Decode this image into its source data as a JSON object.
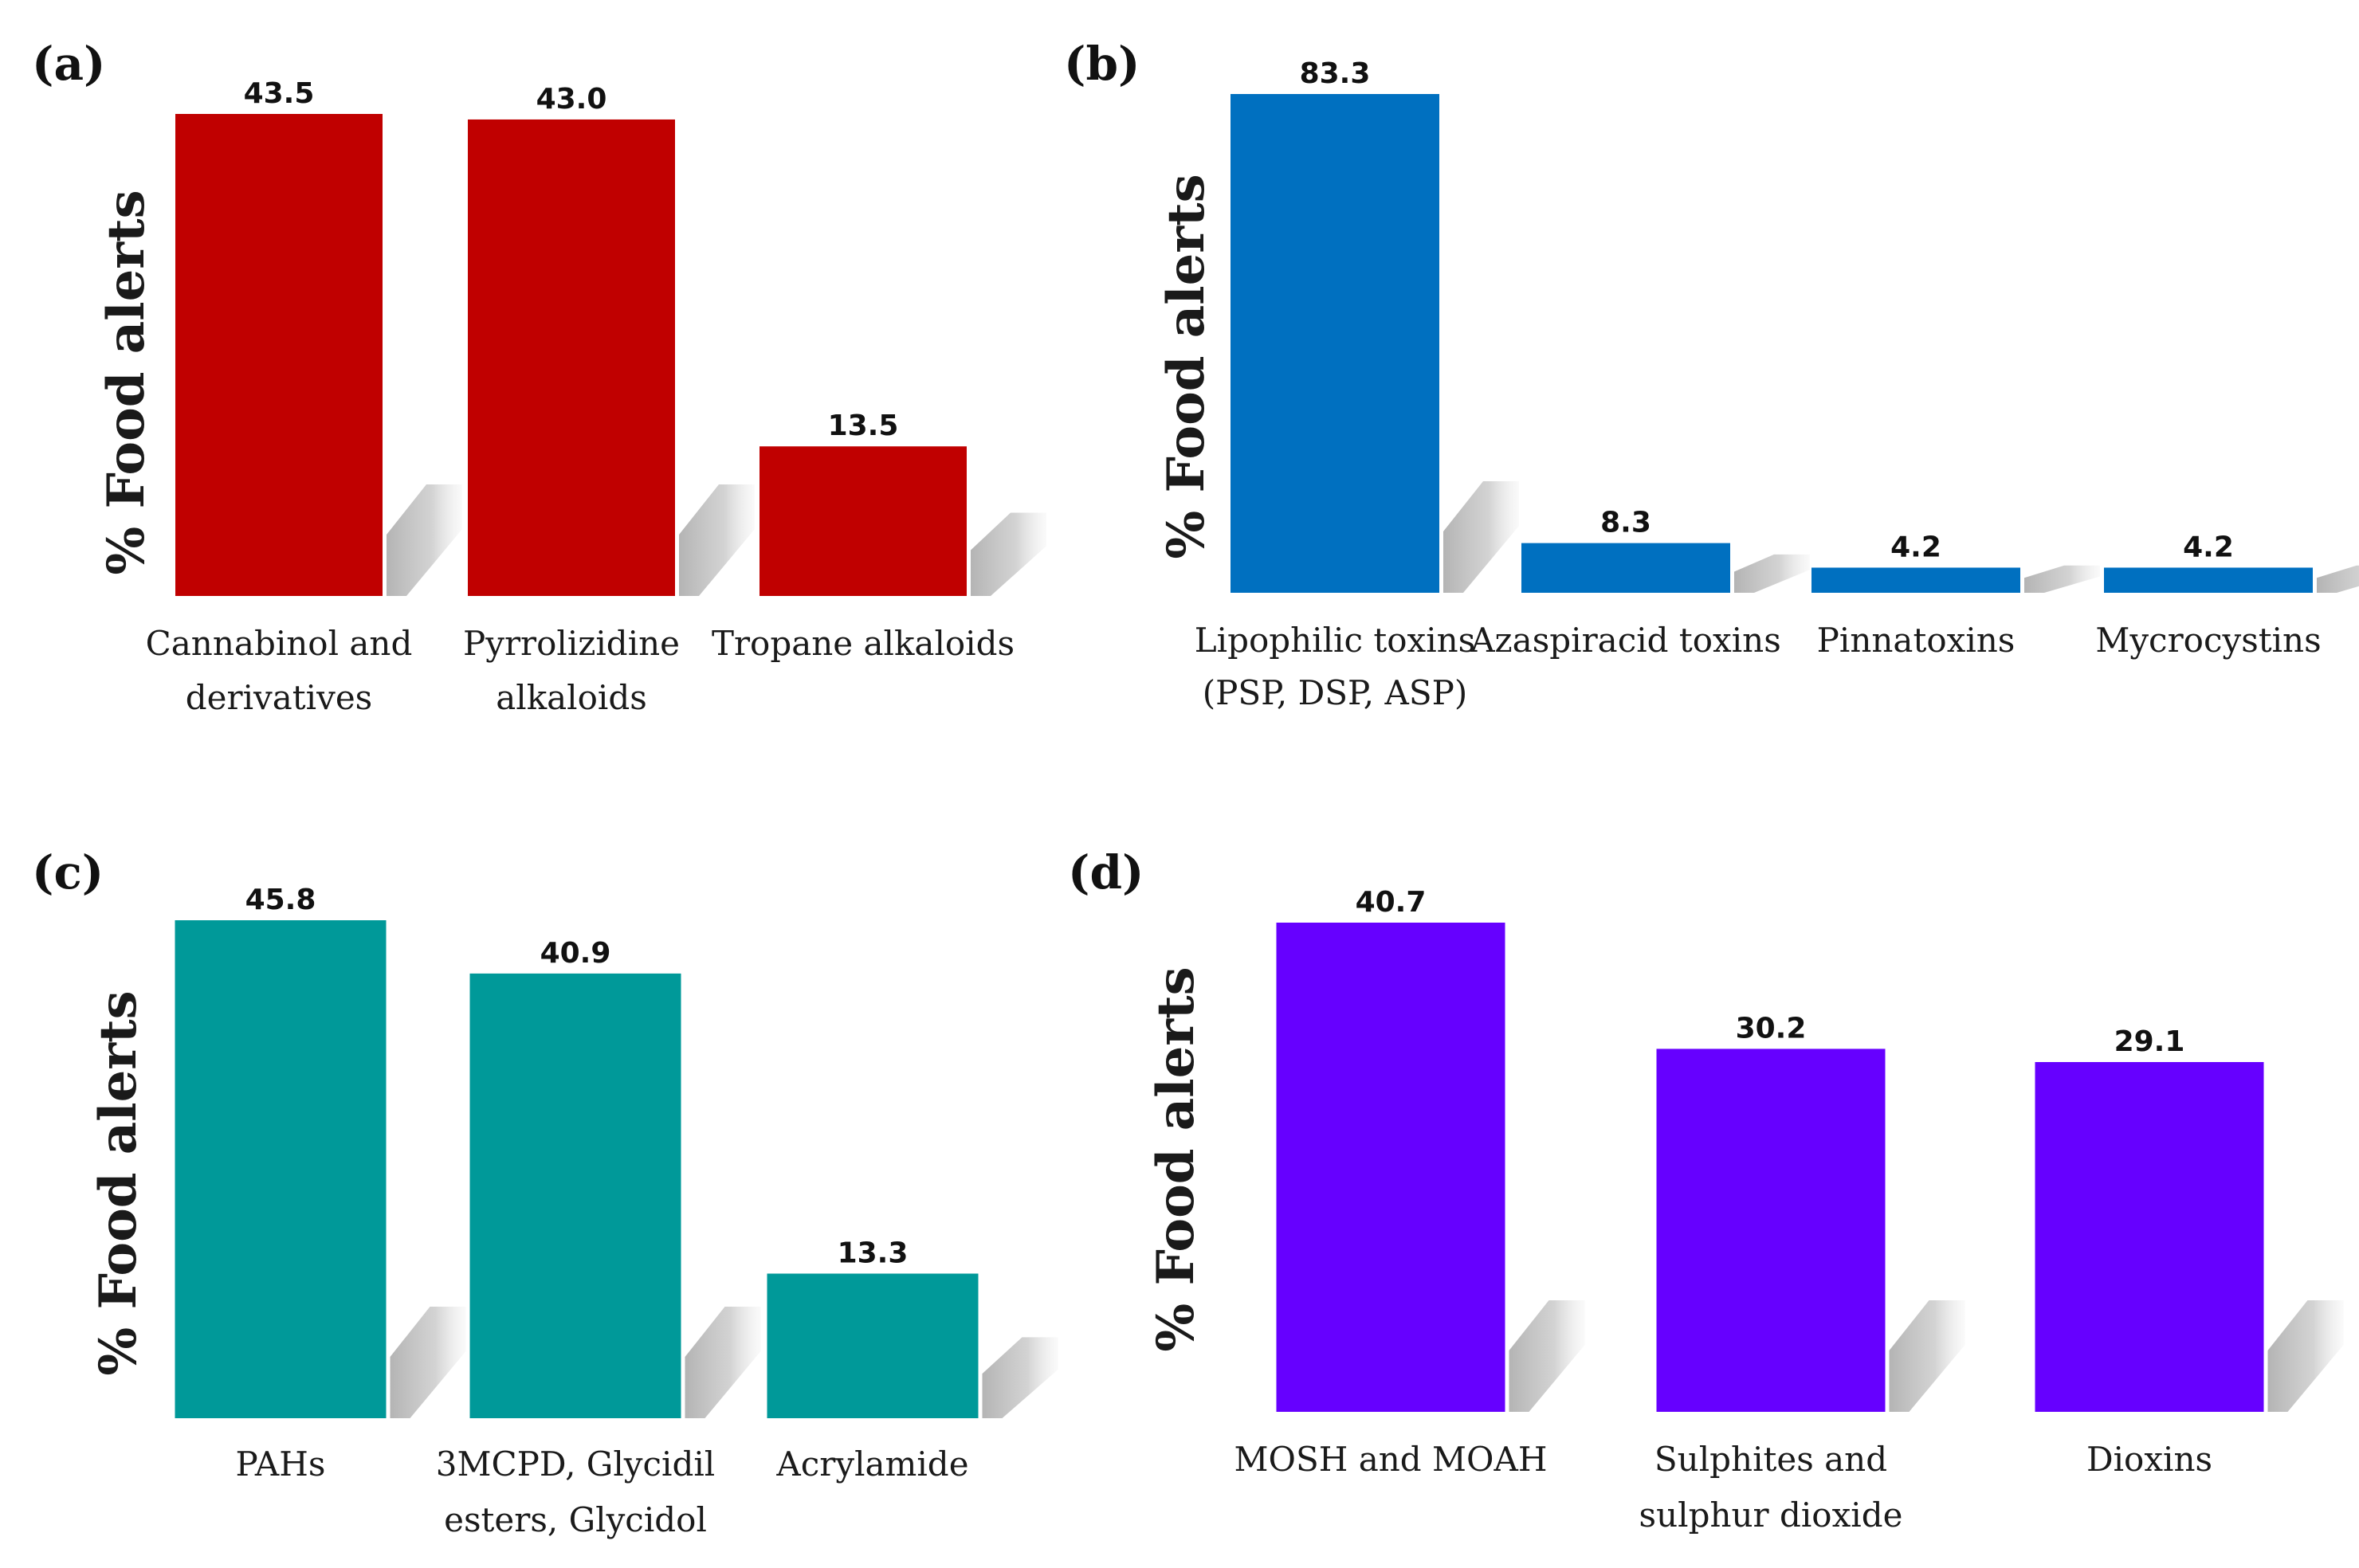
{
  "chart_data": [
    {
      "panel": "(a)",
      "type": "bar",
      "ylabel": "% Food alerts",
      "color": "#C00000",
      "categories": [
        "Cannabinol and derivatives",
        "Pyrrolizidine alkaloids",
        "Tropane alkaloids"
      ],
      "values": [
        43.5,
        43.0,
        13.5
      ],
      "value_labels": [
        "43.5",
        "43.0",
        "13.5"
      ],
      "ylim": [
        0,
        43.5
      ]
    },
    {
      "panel": "(b)",
      "type": "bar",
      "ylabel": "% Food alerts",
      "color": "#0070C0",
      "categories": [
        "Lipophilic toxins (PSP, DSP, ASP)",
        "Azaspiracid toxins",
        "Pinnatoxins",
        "Mycrocystins"
      ],
      "values": [
        83.3,
        8.3,
        4.2,
        4.2
      ],
      "value_labels": [
        "83.3",
        "8.3",
        "4.2",
        "4.2"
      ],
      "ylim": [
        0,
        83.3
      ]
    },
    {
      "panel": "(c)",
      "type": "bar",
      "ylabel": "% Food alerts",
      "color": "#009999",
      "categories": [
        "PAHs",
        "3MCPD, Glycidil esters, Glycidol",
        "Acrylamide"
      ],
      "values": [
        45.8,
        40.9,
        13.3
      ],
      "value_labels": [
        "45.8",
        "40.9",
        "13.3"
      ],
      "ylim": [
        0,
        45.8
      ]
    },
    {
      "panel": "(d)",
      "type": "bar",
      "ylabel": "% Food alerts",
      "color": "#6600FF",
      "categories": [
        "MOSH and MOAH",
        "Sulphites and sulphur dioxide",
        "Dioxins"
      ],
      "values": [
        40.7,
        30.2,
        29.1
      ],
      "value_labels": [
        "40.7",
        "30.2",
        "29.1"
      ],
      "ylim": [
        0,
        40.7
      ]
    }
  ]
}
